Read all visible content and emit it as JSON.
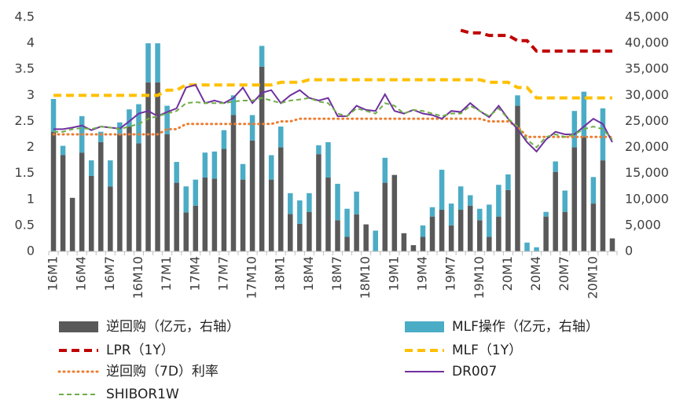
{
  "chart_data": {
    "type": "bar",
    "categories": [
      "16M1",
      null,
      null,
      "16M4",
      null,
      null,
      "16M7",
      null,
      null,
      "16M10",
      null,
      null,
      "17M1",
      null,
      null,
      "17M4",
      null,
      null,
      "17M7",
      null,
      null,
      "17M10",
      null,
      null,
      "18M1",
      null,
      null,
      "18M4",
      null,
      null,
      "18M7",
      null,
      null,
      "18M10",
      null,
      null,
      "19M1",
      null,
      null,
      "19M4",
      null,
      null,
      "19M7",
      null,
      null,
      "19M10",
      null,
      null,
      "20M1",
      null,
      null,
      "20M4",
      null,
      null,
      "20M7",
      null,
      null,
      "20M10",
      null,
      null
    ],
    "ylim": [
      0,
      4.5
    ],
    "yticks": [
      0,
      0.5,
      1,
      1.5,
      2,
      2.5,
      3,
      3.5,
      4,
      4.5
    ],
    "y2lim": [
      0,
      45000
    ],
    "y2ticks": [
      0,
      {
        "value": 5000,
        "label": "5,000"
      },
      {
        "value": 10000,
        "label": "10,000"
      },
      {
        "value": 15000,
        "label": "15,000"
      },
      {
        "value": 20000,
        "label": "20,000"
      },
      {
        "value": 25000,
        "label": "25,000"
      },
      {
        "value": 30000,
        "label": "30,000"
      },
      {
        "value": 35000,
        "label": "35,000"
      },
      {
        "value": 40000,
        "label": "40,000"
      },
      {
        "value": 45000,
        "label": "45,000"
      }
    ],
    "series": [
      {
        "name": "逆回购（亿元，右轴）",
        "style": "bar",
        "axis": "y2",
        "color": "#595959",
        "values": [
          23000,
          18500,
          10300,
          19000,
          14500,
          21000,
          12500,
          22500,
          24000,
          20800,
          32500,
          32500,
          22500,
          13200,
          7500,
          8800,
          14200,
          14000,
          19700,
          26200,
          13800,
          21300,
          35500,
          13800,
          20000,
          7200,
          5300,
          7600,
          18700,
          14200,
          6000,
          2800,
          7100,
          5200,
          0,
          13200,
          14700,
          3500,
          1200,
          2800,
          6700,
          8000,
          5000,
          8000,
          8800,
          6000,
          2800,
          6700,
          11800,
          28000,
          0,
          0,
          6700,
          15300,
          7600,
          20000,
          22000,
          9200,
          17500,
          2500
        ]
      },
      {
        "name": "MLF操作（亿元，右轴）",
        "style": "bar",
        "axis": "y2",
        "color": "#4bacc6",
        "values": [
          6300,
          1800,
          0,
          7000,
          3000,
          2000,
          5000,
          2300,
          3300,
          7500,
          7500,
          7500,
          5500,
          4000,
          5000,
          5000,
          4800,
          5200,
          3600,
          3800,
          3000,
          4900,
          4000,
          4700,
          4000,
          4000,
          4500,
          3600,
          1700,
          6800,
          7000,
          5400,
          4400,
          0,
          4000,
          4800,
          0,
          0,
          0,
          2200,
          1800,
          7700,
          4200,
          4500,
          2000,
          2200,
          6200,
          6100,
          3000,
          2000,
          1700,
          800,
          900,
          2000,
          4100,
          7000,
          8700,
          5100,
          10000,
          0
        ]
      },
      {
        "name": "LPR（1Y）",
        "style": "dashed-thick",
        "color": "#c00000",
        "values": [
          null,
          null,
          null,
          null,
          null,
          null,
          null,
          null,
          null,
          null,
          null,
          null,
          null,
          null,
          null,
          null,
          null,
          null,
          null,
          null,
          null,
          null,
          null,
          null,
          null,
          null,
          null,
          null,
          null,
          null,
          null,
          null,
          null,
          null,
          null,
          null,
          null,
          null,
          null,
          null,
          null,
          null,
          null,
          4.25,
          4.2,
          4.2,
          4.15,
          4.15,
          4.15,
          4.05,
          4.05,
          3.85,
          3.85,
          3.85,
          3.85,
          3.85,
          3.85,
          3.85,
          3.85,
          3.85
        ]
      },
      {
        "name": "MLF（1Y）",
        "style": "dashed-thick",
        "color": "#ffc000",
        "values": [
          3,
          3,
          3,
          3,
          3,
          3,
          3,
          3,
          3,
          3,
          3,
          3,
          3.1,
          3.1,
          3.2,
          3.2,
          3.2,
          3.2,
          3.2,
          3.2,
          3.2,
          3.2,
          3.2,
          3.2,
          3.25,
          3.25,
          3.25,
          3.3,
          3.3,
          3.3,
          3.3,
          3.3,
          3.3,
          3.3,
          3.3,
          3.3,
          3.3,
          3.3,
          3.3,
          3.3,
          3.3,
          3.3,
          3.3,
          3.3,
          3.3,
          3.3,
          3.25,
          3.25,
          3.25,
          3.15,
          3.15,
          2.95,
          2.95,
          2.95,
          2.95,
          2.95,
          2.95,
          2.95,
          2.95,
          2.95
        ]
      },
      {
        "name": "逆回购（7D）利率",
        "style": "dotted",
        "color": "#ed7d31",
        "values": [
          2.25,
          2.25,
          2.25,
          2.25,
          2.25,
          2.25,
          2.25,
          2.25,
          2.25,
          2.25,
          2.25,
          2.25,
          2.35,
          2.35,
          2.45,
          2.45,
          2.45,
          2.45,
          2.45,
          2.45,
          2.45,
          2.45,
          2.45,
          2.45,
          2.5,
          2.5,
          2.55,
          2.55,
          2.55,
          2.55,
          2.55,
          2.55,
          2.55,
          2.55,
          2.55,
          2.55,
          2.55,
          2.55,
          2.55,
          2.55,
          2.55,
          2.55,
          2.55,
          2.55,
          2.55,
          2.55,
          2.5,
          2.5,
          2.5,
          2.4,
          2.2,
          2.2,
          2.2,
          2.2,
          2.2,
          2.2,
          2.2,
          2.2,
          2.2,
          2.2
        ]
      },
      {
        "name": "DR007",
        "style": "line",
        "color": "#7030a0",
        "values": [
          2.35,
          2.35,
          2.38,
          2.42,
          2.33,
          2.4,
          2.38,
          2.36,
          2.5,
          2.65,
          2.7,
          2.6,
          2.68,
          2.75,
          3.15,
          3.2,
          2.85,
          2.9,
          2.85,
          2.95,
          3.15,
          2.85,
          3.05,
          3.1,
          2.85,
          3.0,
          3.1,
          2.95,
          2.9,
          2.95,
          2.6,
          2.6,
          2.8,
          2.72,
          2.7,
          3.02,
          2.7,
          2.65,
          2.72,
          2.65,
          2.62,
          2.55,
          2.7,
          2.68,
          2.85,
          2.7,
          2.58,
          2.8,
          2.55,
          2.35,
          2.1,
          1.92,
          2.15,
          2.3,
          2.25,
          2.25,
          2.4,
          2.55,
          2.45,
          2.1
        ]
      },
      {
        "name": "SHIBOR1W",
        "style": "dashed",
        "color": "#70ad47",
        "values": [
          2.3,
          2.3,
          2.35,
          2.37,
          2.35,
          2.4,
          2.38,
          2.35,
          2.4,
          2.45,
          2.55,
          2.6,
          2.65,
          2.7,
          2.85,
          2.87,
          2.85,
          2.85,
          2.85,
          2.88,
          2.9,
          2.9,
          2.95,
          2.9,
          2.85,
          2.9,
          2.92,
          2.95,
          2.88,
          2.85,
          2.65,
          2.6,
          2.75,
          2.7,
          2.65,
          2.85,
          2.8,
          2.65,
          2.72,
          2.7,
          2.65,
          2.6,
          2.65,
          2.65,
          2.8,
          2.7,
          2.6,
          2.75,
          2.55,
          2.4,
          2.15,
          2.0,
          2.2,
          2.25,
          2.2,
          2.25,
          2.35,
          2.4,
          2.35,
          2.15
        ]
      }
    ]
  }
}
